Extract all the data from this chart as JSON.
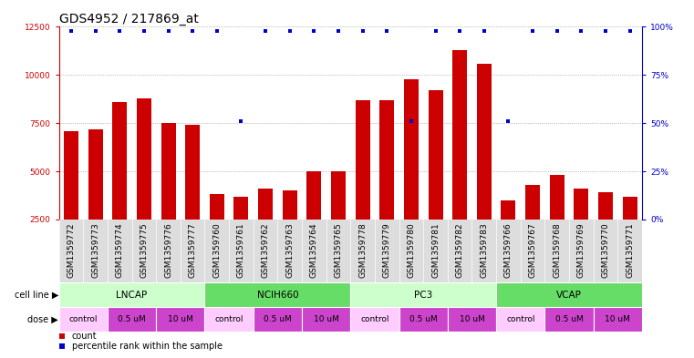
{
  "title": "GDS4952 / 217869_at",
  "samples": [
    "GSM1359772",
    "GSM1359773",
    "GSM1359774",
    "GSM1359775",
    "GSM1359776",
    "GSM1359777",
    "GSM1359760",
    "GSM1359761",
    "GSM1359762",
    "GSM1359763",
    "GSM1359764",
    "GSM1359765",
    "GSM1359778",
    "GSM1359779",
    "GSM1359780",
    "GSM1359781",
    "GSM1359782",
    "GSM1359783",
    "GSM1359766",
    "GSM1359767",
    "GSM1359768",
    "GSM1359769",
    "GSM1359770",
    "GSM1359771"
  ],
  "counts": [
    7100,
    7200,
    8600,
    8800,
    7500,
    7400,
    3800,
    3700,
    4100,
    4000,
    5000,
    5000,
    8700,
    8700,
    9800,
    9200,
    11300,
    10600,
    3500,
    4300,
    4800,
    4100,
    3900,
    3700
  ],
  "percentile_high_y": 12300,
  "percentile_low_y": 7600,
  "percentile_ranks_high": [
    true,
    true,
    true,
    true,
    true,
    true,
    true,
    false,
    true,
    true,
    true,
    true,
    true,
    true,
    false,
    true,
    true,
    true,
    false,
    true,
    true,
    true,
    true,
    true
  ],
  "cell_lines": [
    {
      "name": "LNCAP",
      "start": 0,
      "end": 6,
      "color": "#ccffcc"
    },
    {
      "name": "NCIH660",
      "start": 6,
      "end": 12,
      "color": "#66dd66"
    },
    {
      "name": "PC3",
      "start": 12,
      "end": 18,
      "color": "#ccffcc"
    },
    {
      "name": "VCAP",
      "start": 18,
      "end": 24,
      "color": "#66dd66"
    }
  ],
  "dose_groups": [
    {
      "label": "control",
      "start": 0,
      "end": 2,
      "color": "#ffccff"
    },
    {
      "label": "0.5 uM",
      "start": 2,
      "end": 4,
      "color": "#cc44cc"
    },
    {
      "label": "10 uM",
      "start": 4,
      "end": 6,
      "color": "#cc44cc"
    },
    {
      "label": "control",
      "start": 6,
      "end": 8,
      "color": "#ffccff"
    },
    {
      "label": "0.5 uM",
      "start": 8,
      "end": 10,
      "color": "#cc44cc"
    },
    {
      "label": "10 uM",
      "start": 10,
      "end": 12,
      "color": "#cc44cc"
    },
    {
      "label": "control",
      "start": 12,
      "end": 14,
      "color": "#ffccff"
    },
    {
      "label": "0.5 uM",
      "start": 14,
      "end": 16,
      "color": "#cc44cc"
    },
    {
      "label": "10 uM",
      "start": 16,
      "end": 18,
      "color": "#cc44cc"
    },
    {
      "label": "control",
      "start": 18,
      "end": 20,
      "color": "#ffccff"
    },
    {
      "label": "0.5 uM",
      "start": 20,
      "end": 22,
      "color": "#cc44cc"
    },
    {
      "label": "10 uM",
      "start": 22,
      "end": 24,
      "color": "#cc44cc"
    }
  ],
  "bar_color": "#cc0000",
  "dot_color": "#0000cc",
  "ylim_left": [
    2500,
    12500
  ],
  "yticks_left": [
    2500,
    5000,
    7500,
    10000,
    12500
  ],
  "ylim_right": [
    0,
    100
  ],
  "yticks_right": [
    0,
    25,
    50,
    75,
    100
  ],
  "ytick_right_labels": [
    "0%",
    "25%",
    "50%",
    "75%",
    "100%"
  ],
  "background_color": "#ffffff",
  "sample_bg_color": "#dddddd",
  "grid_color": "#888888",
  "title_fontsize": 10,
  "tick_fontsize": 6.5,
  "annot_fontsize": 7.5,
  "legend_fontsize": 7,
  "xlim": [
    -0.5,
    23.5
  ]
}
